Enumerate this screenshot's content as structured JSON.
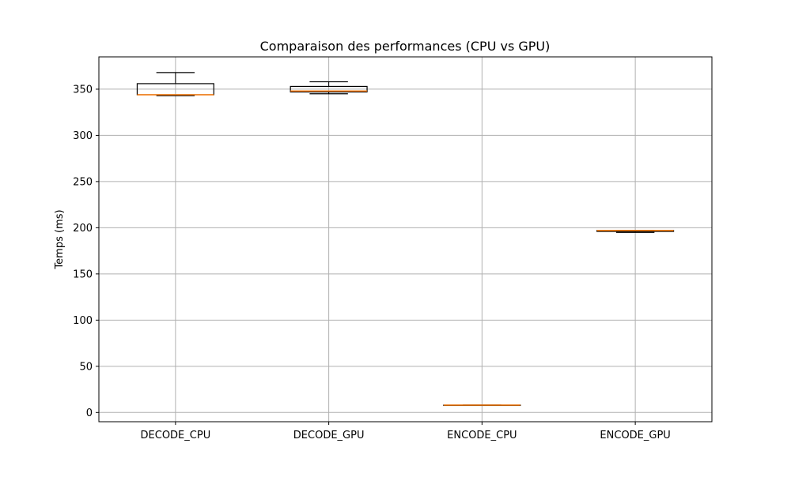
{
  "chart_data": {
    "type": "box",
    "title": "Comparaison des performances (CPU vs GPU)",
    "xlabel": "",
    "ylabel": "Temps (ms)",
    "categories": [
      "DECODE_CPU",
      "DECODE_GPU",
      "ENCODE_CPU",
      "ENCODE_GPU"
    ],
    "boxes": [
      {
        "category": "DECODE_CPU",
        "whisker_low": 343,
        "q1": 344,
        "median": 344,
        "q3": 356,
        "whisker_high": 368
      },
      {
        "category": "DECODE_GPU",
        "whisker_low": 345,
        "q1": 347,
        "median": 348,
        "q3": 353,
        "whisker_high": 358
      },
      {
        "category": "ENCODE_CPU",
        "whisker_low": 8,
        "q1": 8,
        "median": 8,
        "q3": 8,
        "whisker_high": 8
      },
      {
        "category": "ENCODE_GPU",
        "whisker_low": 195,
        "q1": 196,
        "median": 197,
        "q3": 197,
        "whisker_high": 197
      }
    ],
    "yticks": [
      0,
      50,
      100,
      150,
      200,
      250,
      300,
      350
    ],
    "ylim": [
      -10,
      385
    ],
    "grid": true,
    "colors": {
      "box": "#000000",
      "median": "#ff7f0e",
      "grid": "#b0b0b0"
    }
  }
}
